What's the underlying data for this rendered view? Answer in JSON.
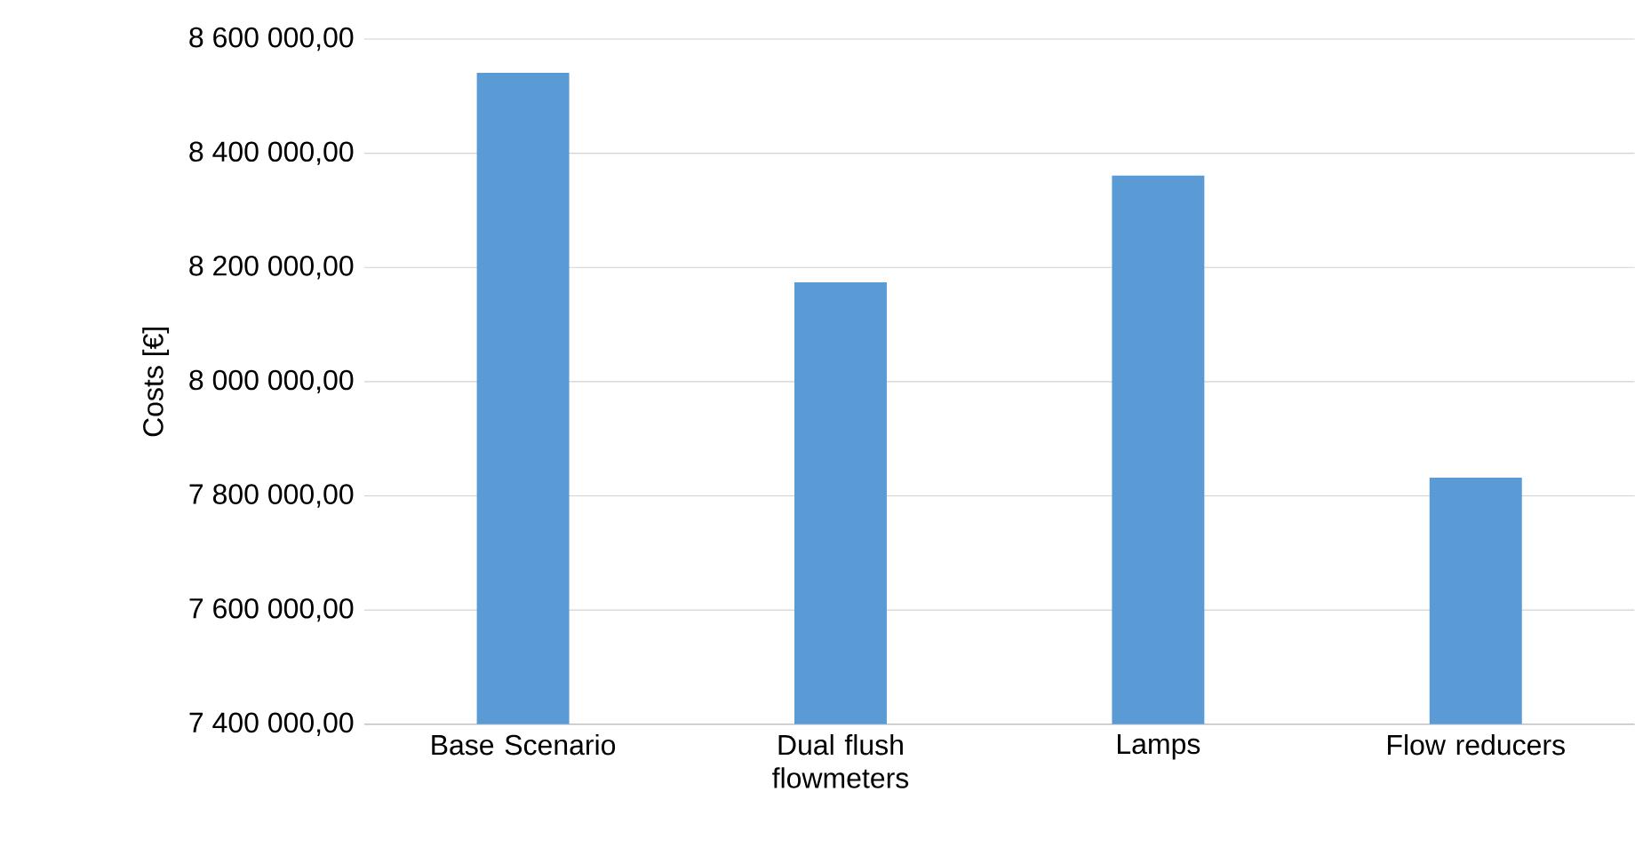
{
  "chart_data": {
    "type": "bar",
    "ylabel": "Costs [€]",
    "categories": [
      "Base Scenario",
      "Dual flush flowmeters",
      "Lamps",
      "Flow reducers"
    ],
    "values": [
      8541000,
      8174000,
      8361000,
      7832000
    ],
    "color": "#5b9bd5",
    "ylim": [
      7400000,
      8600000
    ],
    "yticks": [
      {
        "value": 7400000,
        "label": "7 400 000,00"
      },
      {
        "value": 7600000,
        "label": "7 600 000,00"
      },
      {
        "value": 7800000,
        "label": "7 800 000,00"
      },
      {
        "value": 8000000,
        "label": "8 000 000,00"
      },
      {
        "value": 8200000,
        "label": "8 200 000,00"
      },
      {
        "value": 8400000,
        "label": "8 400 000,00"
      },
      {
        "value": 8600000,
        "label": "8 600 000,00"
      }
    ],
    "grid": "y"
  }
}
